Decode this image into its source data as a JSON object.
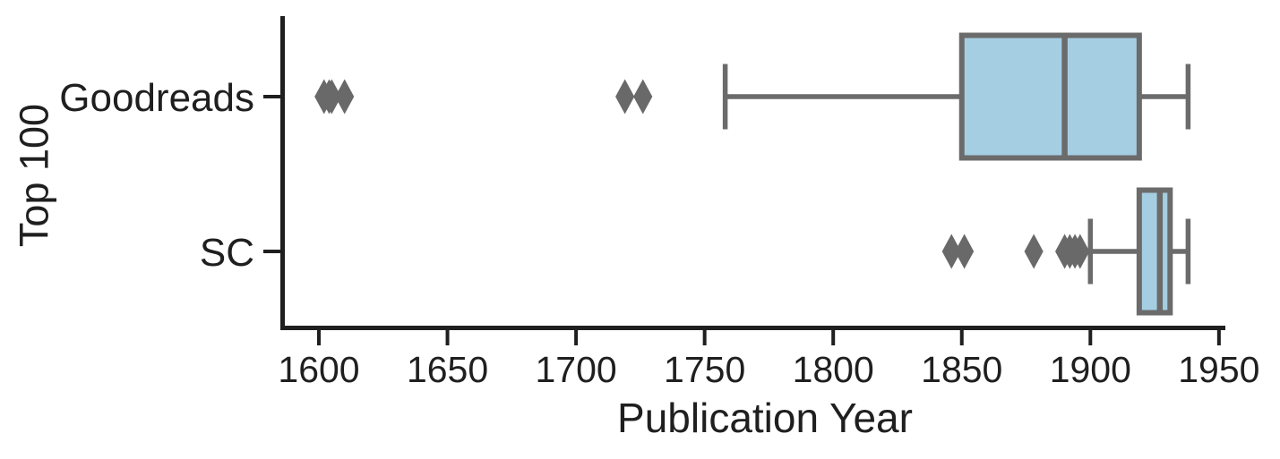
{
  "figure": {
    "xlabel": "Publication Year",
    "ylabel": "Top 100"
  },
  "chart_data": {
    "type": "boxplot",
    "orientation": "horizontal",
    "title": "",
    "xlabel": "Publication Year",
    "ylabel": "Top 100",
    "x_ticks": [
      1600,
      1650,
      1700,
      1750,
      1800,
      1850,
      1900,
      1950
    ],
    "xlim": [
      1586,
      1952
    ],
    "grid": false,
    "legend": "none",
    "categories": [
      "Goodreads",
      "SC"
    ],
    "series": [
      {
        "name": "Goodreads",
        "whisker_low": 1758,
        "q1": 1850,
        "median": 1890,
        "q3": 1919,
        "whisker_high": 1938,
        "outliers": [
          1602,
          1604,
          1605,
          1610,
          1719,
          1726
        ]
      },
      {
        "name": "SC",
        "whisker_low": 1900,
        "q1": 1919,
        "median": 1927,
        "q3": 1931,
        "whisker_high": 1938,
        "outliers": [
          1846,
          1851,
          1878,
          1890,
          1892,
          1894,
          1896
        ]
      }
    ],
    "style": {
      "box_fill": "#a6cee3",
      "box_edge": "#6b6b6b",
      "whisker_color": "#6b6b6b",
      "flier_color": "#696969",
      "axis_color": "#1f1f1f",
      "text_color": "#1f1f1f"
    }
  }
}
